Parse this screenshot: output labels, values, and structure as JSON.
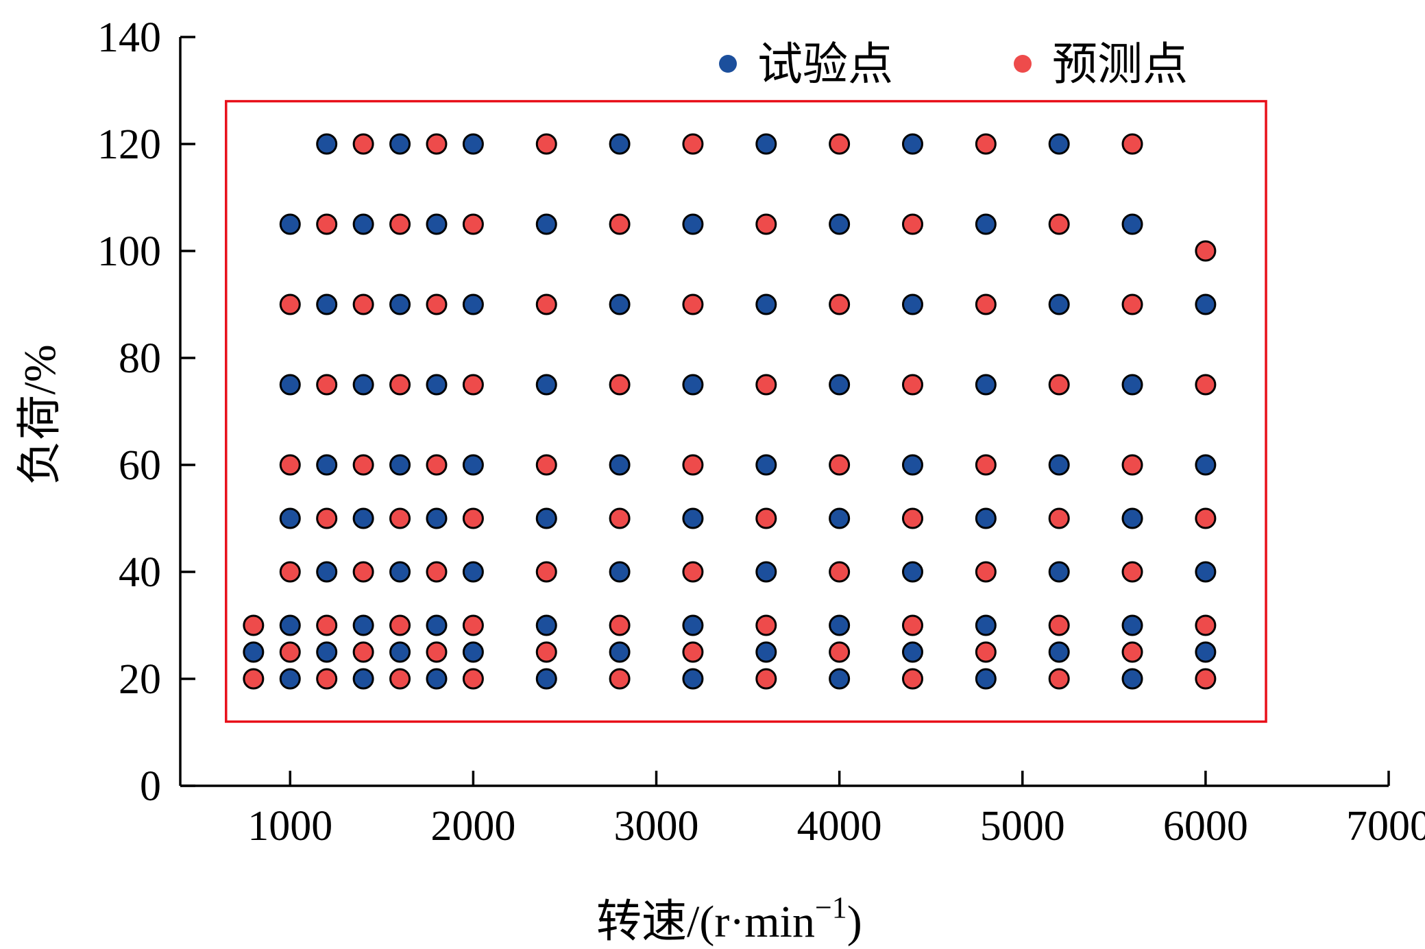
{
  "chart_data": {
    "type": "scatter",
    "title": "",
    "xlabel": "转速/(r·min",
    "xlabel_sup": "−1",
    "xlabel_close": ")",
    "ylabel": "负荷/%",
    "xlim": [
      400,
      7000
    ],
    "ylim": [
      0,
      140
    ],
    "xticks": [
      1000,
      2000,
      3000,
      4000,
      5000,
      6000,
      7000
    ],
    "yticks": [
      0,
      20,
      40,
      60,
      80,
      100,
      120,
      140
    ],
    "grid": false,
    "legend_position": "top-right",
    "region_box": {
      "x": [
        650,
        6330
      ],
      "y": [
        12,
        128
      ],
      "color": "#e8101a"
    },
    "series": [
      {
        "name": "试验点",
        "color": "#1c4f9c",
        "points": [
          [
            1200,
            120
          ],
          [
            1600,
            120
          ],
          [
            2000,
            120
          ],
          [
            2800,
            120
          ],
          [
            3600,
            120
          ],
          [
            4400,
            120
          ],
          [
            5200,
            120
          ],
          [
            1000,
            105
          ],
          [
            1400,
            105
          ],
          [
            1800,
            105
          ],
          [
            2400,
            105
          ],
          [
            3200,
            105
          ],
          [
            4000,
            105
          ],
          [
            4800,
            105
          ],
          [
            5600,
            105
          ],
          [
            1200,
            90
          ],
          [
            1600,
            90
          ],
          [
            2000,
            90
          ],
          [
            2800,
            90
          ],
          [
            3600,
            90
          ],
          [
            4400,
            90
          ],
          [
            5200,
            90
          ],
          [
            6000,
            90
          ],
          [
            1000,
            75
          ],
          [
            1400,
            75
          ],
          [
            1800,
            75
          ],
          [
            2400,
            75
          ],
          [
            3200,
            75
          ],
          [
            4000,
            75
          ],
          [
            4800,
            75
          ],
          [
            5600,
            75
          ],
          [
            1200,
            60
          ],
          [
            1600,
            60
          ],
          [
            2000,
            60
          ],
          [
            2800,
            60
          ],
          [
            3600,
            60
          ],
          [
            4400,
            60
          ],
          [
            5200,
            60
          ],
          [
            6000,
            60
          ],
          [
            1000,
            50
          ],
          [
            1400,
            50
          ],
          [
            1800,
            50
          ],
          [
            2400,
            50
          ],
          [
            3200,
            50
          ],
          [
            4000,
            50
          ],
          [
            4800,
            50
          ],
          [
            5600,
            50
          ],
          [
            1200,
            40
          ],
          [
            1600,
            40
          ],
          [
            2000,
            40
          ],
          [
            2800,
            40
          ],
          [
            3600,
            40
          ],
          [
            4400,
            40
          ],
          [
            5200,
            40
          ],
          [
            6000,
            40
          ],
          [
            1000,
            30
          ],
          [
            1400,
            30
          ],
          [
            1800,
            30
          ],
          [
            2400,
            30
          ],
          [
            3200,
            30
          ],
          [
            4000,
            30
          ],
          [
            4800,
            30
          ],
          [
            5600,
            30
          ],
          [
            800,
            25
          ],
          [
            1200,
            25
          ],
          [
            1600,
            25
          ],
          [
            2000,
            25
          ],
          [
            2800,
            25
          ],
          [
            3600,
            25
          ],
          [
            4400,
            25
          ],
          [
            5200,
            25
          ],
          [
            6000,
            25
          ],
          [
            1000,
            20
          ],
          [
            1400,
            20
          ],
          [
            1800,
            20
          ],
          [
            2400,
            20
          ],
          [
            3200,
            20
          ],
          [
            4000,
            20
          ],
          [
            4800,
            20
          ],
          [
            5600,
            20
          ]
        ]
      },
      {
        "name": "预测点",
        "color": "#ee4b4b",
        "points": [
          [
            1400,
            120
          ],
          [
            1800,
            120
          ],
          [
            2400,
            120
          ],
          [
            3200,
            120
          ],
          [
            4000,
            120
          ],
          [
            4800,
            120
          ],
          [
            5600,
            120
          ],
          [
            1200,
            105
          ],
          [
            1600,
            105
          ],
          [
            2000,
            105
          ],
          [
            2800,
            105
          ],
          [
            3600,
            105
          ],
          [
            4400,
            105
          ],
          [
            5200,
            105
          ],
          [
            6000,
            100
          ],
          [
            1000,
            90
          ],
          [
            1400,
            90
          ],
          [
            1800,
            90
          ],
          [
            2400,
            90
          ],
          [
            3200,
            90
          ],
          [
            4000,
            90
          ],
          [
            4800,
            90
          ],
          [
            5600,
            90
          ],
          [
            1200,
            75
          ],
          [
            1600,
            75
          ],
          [
            2000,
            75
          ],
          [
            2800,
            75
          ],
          [
            3600,
            75
          ],
          [
            4400,
            75
          ],
          [
            5200,
            75
          ],
          [
            6000,
            75
          ],
          [
            1000,
            60
          ],
          [
            1400,
            60
          ],
          [
            1800,
            60
          ],
          [
            2400,
            60
          ],
          [
            3200,
            60
          ],
          [
            4000,
            60
          ],
          [
            4800,
            60
          ],
          [
            5600,
            60
          ],
          [
            1200,
            50
          ],
          [
            1600,
            50
          ],
          [
            2000,
            50
          ],
          [
            2800,
            50
          ],
          [
            3600,
            50
          ],
          [
            4400,
            50
          ],
          [
            5200,
            50
          ],
          [
            6000,
            50
          ],
          [
            1000,
            40
          ],
          [
            1400,
            40
          ],
          [
            1800,
            40
          ],
          [
            2400,
            40
          ],
          [
            3200,
            40
          ],
          [
            4000,
            40
          ],
          [
            4800,
            40
          ],
          [
            5600,
            40
          ],
          [
            800,
            30
          ],
          [
            1200,
            30
          ],
          [
            1600,
            30
          ],
          [
            2000,
            30
          ],
          [
            2800,
            30
          ],
          [
            3600,
            30
          ],
          [
            4400,
            30
          ],
          [
            5200,
            30
          ],
          [
            6000,
            30
          ],
          [
            1000,
            25
          ],
          [
            1400,
            25
          ],
          [
            1800,
            25
          ],
          [
            2400,
            25
          ],
          [
            3200,
            25
          ],
          [
            4000,
            25
          ],
          [
            4800,
            25
          ],
          [
            5600,
            25
          ],
          [
            800,
            20
          ],
          [
            1200,
            20
          ],
          [
            1600,
            20
          ],
          [
            2000,
            20
          ],
          [
            2800,
            20
          ],
          [
            3600,
            20
          ],
          [
            4400,
            20
          ],
          [
            5200,
            20
          ],
          [
            6000,
            20
          ]
        ]
      }
    ]
  }
}
